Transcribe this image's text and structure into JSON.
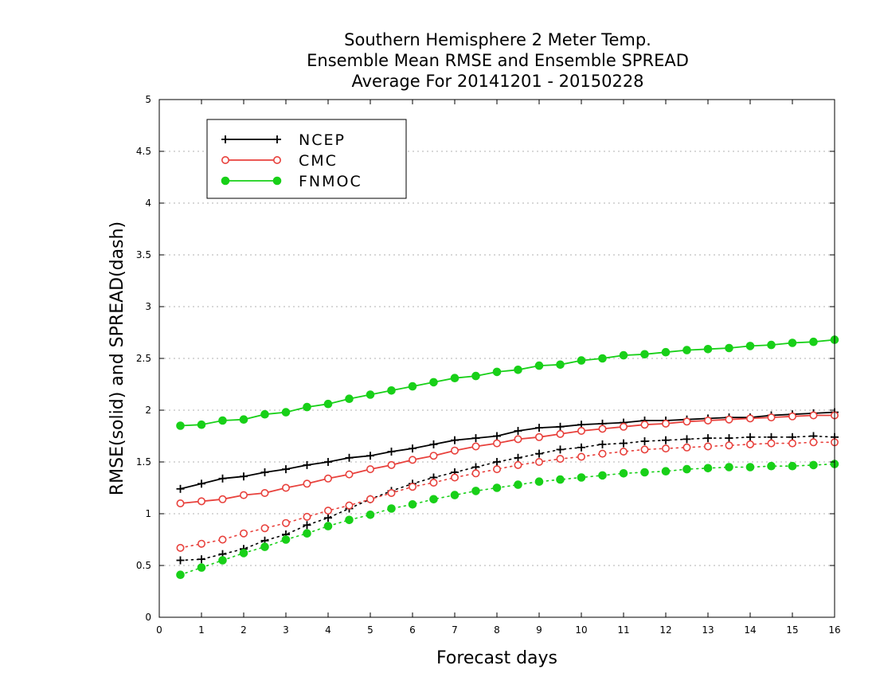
{
  "chart_data": {
    "type": "line",
    "title": [
      "Southern Hemisphere 2 Meter Temp.",
      "Ensemble Mean RMSE and Ensemble SPREAD",
      "Average For 20141201 - 20150228"
    ],
    "xlabel": "Forecast days",
    "ylabel": "RMSE(solid) and SPREAD(dash)",
    "xlim": [
      0,
      16
    ],
    "ylim": [
      0,
      5
    ],
    "xticks": [
      0,
      1,
      2,
      3,
      4,
      5,
      6,
      7,
      8,
      9,
      10,
      11,
      12,
      13,
      14,
      15,
      16
    ],
    "yticks": [
      0,
      0.5,
      1,
      1.5,
      2,
      2.5,
      3,
      3.5,
      4,
      4.5,
      5
    ],
    "ytick_labels": [
      "0",
      "0.5",
      "1",
      "1.5",
      "2",
      "2.5",
      "3",
      "3.5",
      "4",
      "4.5",
      "5"
    ],
    "grid": "horizontal-dotted",
    "legend_position": "top-left",
    "x": [
      0.5,
      1,
      1.5,
      2,
      2.5,
      3,
      3.5,
      4,
      4.5,
      5,
      5.5,
      6,
      6.5,
      7,
      7.5,
      8,
      8.5,
      9,
      9.5,
      10,
      10.5,
      11,
      11.5,
      12,
      12.5,
      13,
      13.5,
      14,
      14.5,
      15,
      15.5,
      16
    ],
    "series": [
      {
        "name": "NCEP",
        "color": "#000000",
        "marker": "plus",
        "rmse": [
          1.24,
          1.29,
          1.34,
          1.36,
          1.4,
          1.43,
          1.47,
          1.5,
          1.54,
          1.56,
          1.6,
          1.63,
          1.67,
          1.71,
          1.73,
          1.75,
          1.8,
          1.83,
          1.84,
          1.86,
          1.87,
          1.88,
          1.9,
          1.9,
          1.91,
          1.92,
          1.93,
          1.93,
          1.95,
          1.96,
          1.97,
          1.98
        ],
        "spread": [
          0.55,
          0.56,
          0.61,
          0.66,
          0.74,
          0.8,
          0.89,
          0.96,
          1.05,
          1.14,
          1.22,
          1.29,
          1.35,
          1.4,
          1.45,
          1.5,
          1.54,
          1.58,
          1.62,
          1.64,
          1.67,
          1.68,
          1.7,
          1.71,
          1.72,
          1.73,
          1.73,
          1.74,
          1.74,
          1.74,
          1.75,
          1.74
        ]
      },
      {
        "name": "CMC",
        "color": "#e8413c",
        "marker": "open-circle",
        "rmse": [
          1.1,
          1.12,
          1.14,
          1.18,
          1.2,
          1.25,
          1.29,
          1.34,
          1.38,
          1.43,
          1.47,
          1.52,
          1.56,
          1.61,
          1.65,
          1.68,
          1.72,
          1.74,
          1.77,
          1.8,
          1.82,
          1.84,
          1.86,
          1.87,
          1.89,
          1.9,
          1.91,
          1.92,
          1.93,
          1.94,
          1.95,
          1.95
        ],
        "spread": [
          0.67,
          0.71,
          0.75,
          0.81,
          0.86,
          0.91,
          0.97,
          1.03,
          1.08,
          1.14,
          1.2,
          1.26,
          1.3,
          1.35,
          1.39,
          1.43,
          1.47,
          1.5,
          1.53,
          1.55,
          1.58,
          1.6,
          1.62,
          1.63,
          1.64,
          1.65,
          1.66,
          1.67,
          1.68,
          1.68,
          1.69,
          1.69
        ]
      },
      {
        "name": "FNMOC",
        "color": "#18d018",
        "marker": "filled-circle",
        "rmse": [
          1.85,
          1.86,
          1.9,
          1.91,
          1.96,
          1.98,
          2.03,
          2.06,
          2.11,
          2.15,
          2.19,
          2.23,
          2.27,
          2.31,
          2.33,
          2.37,
          2.39,
          2.43,
          2.44,
          2.48,
          2.5,
          2.53,
          2.54,
          2.56,
          2.58,
          2.59,
          2.6,
          2.62,
          2.63,
          2.65,
          2.66,
          2.68
        ],
        "spread": [
          0.41,
          0.48,
          0.55,
          0.62,
          0.68,
          0.75,
          0.81,
          0.88,
          0.94,
          0.99,
          1.05,
          1.09,
          1.14,
          1.18,
          1.22,
          1.25,
          1.28,
          1.31,
          1.33,
          1.35,
          1.37,
          1.39,
          1.4,
          1.41,
          1.43,
          1.44,
          1.45,
          1.45,
          1.46,
          1.46,
          1.47,
          1.48
        ]
      }
    ]
  }
}
